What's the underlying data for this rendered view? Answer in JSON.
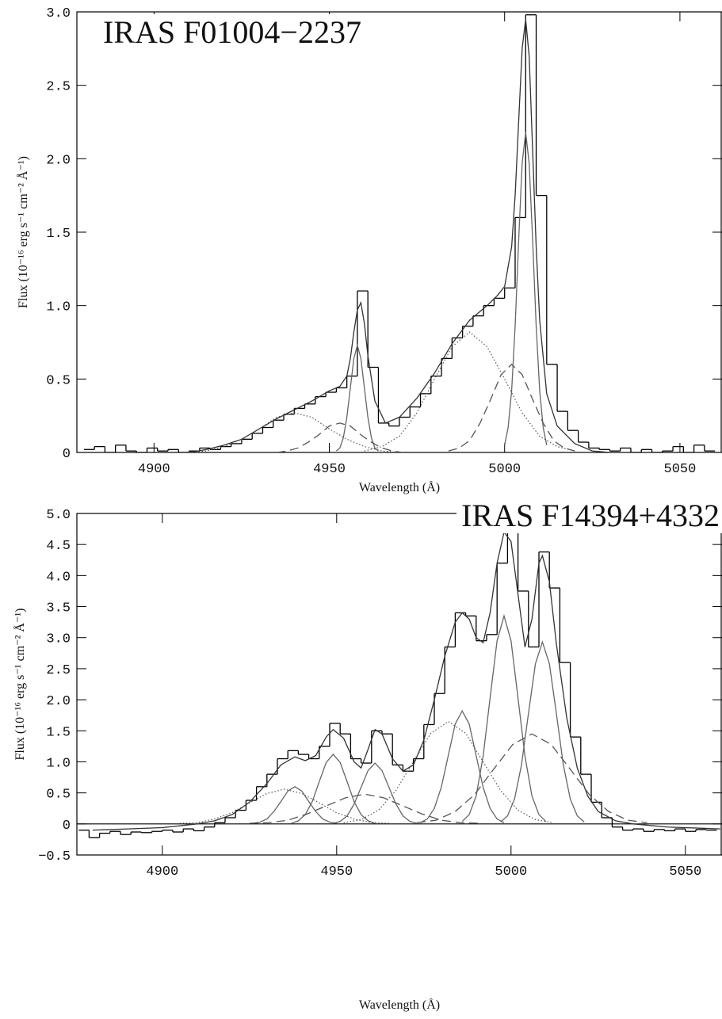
{
  "chart_data": [
    {
      "type": "line",
      "title": "IRAS F01004−2237",
      "xlabel": "Wavelength (Å)",
      "ylabel": "Flux (10⁻¹⁶ erg s⁻¹ cm⁻² Å⁻¹)",
      "xlim": [
        4878,
        5062
      ],
      "ylim": [
        0,
        3.0
      ],
      "xticks": [
        4900,
        4950,
        5000,
        5050
      ],
      "yticks": [
        0,
        0.5,
        {
          "value": 1,
          "label": "1.0"
        },
        1.5,
        {
          "value": 2,
          "label": "2.0"
        },
        2.5,
        {
          "value": 3,
          "label": "3.0"
        }
      ],
      "zero_line": false,
      "series": [
        {
          "style": "step",
          "color": "#000000",
          "x": [
            4880,
            4883,
            4886,
            4889,
            4892,
            4895,
            4898,
            4901,
            4904,
            4907,
            4910,
            4913,
            4916,
            4919,
            4922,
            4925,
            4928,
            4931,
            4934,
            4937,
            4940,
            4943,
            4946,
            4949,
            4952,
            4955,
            4958,
            4961,
            4964,
            4967,
            4970,
            4973,
            4976,
            4979,
            4982,
            4985,
            4988,
            4991,
            4994,
            4997,
            5000,
            5003,
            5006,
            5009,
            5012,
            5015,
            5018,
            5021,
            5024,
            5027,
            5030,
            5033,
            5036,
            5039,
            5042,
            5045,
            5048,
            5051,
            5054,
            5057
          ],
          "values": [
            0.02,
            0.04,
            0.0,
            0.05,
            0.01,
            0.0,
            0.03,
            0.01,
            0.02,
            0.0,
            0.01,
            0.03,
            0.02,
            0.04,
            0.06,
            0.09,
            0.13,
            0.17,
            0.22,
            0.26,
            0.3,
            0.33,
            0.38,
            0.41,
            0.44,
            0.52,
            1.1,
            0.58,
            0.2,
            0.18,
            0.24,
            0.31,
            0.4,
            0.52,
            0.64,
            0.78,
            0.86,
            0.93,
            1.0,
            1.05,
            1.12,
            1.6,
            2.98,
            1.75,
            0.6,
            0.28,
            0.15,
            0.07,
            0.03,
            0.02,
            0.01,
            0.03,
            0.0,
            0.02,
            0.0,
            0.01,
            0.04,
            0.0,
            0.05,
            0.01
          ]
        },
        {
          "style": "solid",
          "color": "#333333",
          "x": [
            4910,
            4915,
            4920,
            4925,
            4930,
            4935,
            4940,
            4945,
            4950,
            4953,
            4955,
            4956,
            4957,
            4958,
            4959,
            4960,
            4961,
            4963,
            4966,
            4970,
            4975,
            4980,
            4985,
            4990,
            4995,
            4998,
            5000,
            5002,
            5003,
            5004,
            5005,
            5006,
            5007,
            5008,
            5009,
            5010,
            5012,
            5015,
            5020,
            5025,
            5030
          ],
          "values": [
            0.0,
            0.02,
            0.05,
            0.09,
            0.16,
            0.23,
            0.29,
            0.35,
            0.42,
            0.45,
            0.52,
            0.64,
            0.82,
            0.97,
            1.02,
            0.88,
            0.66,
            0.35,
            0.2,
            0.24,
            0.37,
            0.54,
            0.74,
            0.9,
            1.0,
            1.07,
            1.13,
            1.4,
            1.75,
            2.25,
            2.75,
            2.95,
            2.7,
            2.05,
            1.4,
            0.9,
            0.4,
            0.18,
            0.06,
            0.01,
            0.0
          ]
        },
        {
          "style": "solid",
          "color": "#666666",
          "x": [
            5000,
            5001,
            5002,
            5003,
            5004,
            5005,
            5006,
            5007,
            5008,
            5009,
            5010,
            5011,
            5012
          ],
          "values": [
            0.05,
            0.17,
            0.42,
            0.86,
            1.44,
            1.97,
            2.18,
            1.97,
            1.44,
            0.86,
            0.42,
            0.17,
            0.05
          ]
        },
        {
          "style": "solid",
          "color": "#666666",
          "x": [
            4952,
            4953,
            4954,
            4955,
            4956,
            4957,
            4958,
            4959,
            4960,
            4961,
            4962,
            4963,
            4964
          ],
          "values": [
            0.01,
            0.03,
            0.1,
            0.24,
            0.44,
            0.64,
            0.73,
            0.64,
            0.44,
            0.24,
            0.1,
            0.03,
            0.01
          ]
        },
        {
          "style": "dotted",
          "color": "#555555",
          "x": [
            4960,
            4965,
            4970,
            4975,
            4980,
            4985,
            4990,
            4995,
            5000,
            5005,
            5010,
            5015,
            5020
          ],
          "values": [
            0.01,
            0.04,
            0.11,
            0.27,
            0.5,
            0.72,
            0.82,
            0.72,
            0.5,
            0.27,
            0.11,
            0.04,
            0.01
          ]
        },
        {
          "style": "dotted",
          "color": "#555555",
          "x": [
            4910,
            4915,
            4920,
            4925,
            4930,
            4935,
            4940,
            4945,
            4950,
            4955,
            4960,
            4965,
            4970
          ],
          "values": [
            0.0,
            0.01,
            0.04,
            0.09,
            0.16,
            0.24,
            0.27,
            0.24,
            0.16,
            0.09,
            0.04,
            0.01,
            0.0
          ]
        },
        {
          "style": "dashed",
          "color": "#555555",
          "x": [
            4984,
            4987,
            4990,
            4993,
            4996,
            4999,
            5002,
            5005,
            5008,
            5011,
            5014,
            5017,
            5020
          ],
          "values": [
            0.01,
            0.03,
            0.08,
            0.2,
            0.36,
            0.53,
            0.6,
            0.53,
            0.36,
            0.2,
            0.08,
            0.03,
            0.01
          ]
        },
        {
          "style": "dashed",
          "color": "#555555",
          "x": [
            4935,
            4938,
            4941,
            4944,
            4947,
            4950,
            4953,
            4956,
            4959,
            4962,
            4965,
            4968,
            4971
          ],
          "values": [
            0.0,
            0.01,
            0.03,
            0.07,
            0.12,
            0.18,
            0.2,
            0.18,
            0.12,
            0.07,
            0.03,
            0.01,
            0.0
          ]
        }
      ]
    },
    {
      "type": "line",
      "title": "IRAS F14394+4332",
      "xlabel": "Wavelength (Å)",
      "ylabel": "Flux (10⁻¹⁶ erg s⁻¹ cm⁻² Å⁻¹)",
      "xlim": [
        4875.5,
        5060.5
      ],
      "ylim": [
        -0.5,
        5.0
      ],
      "xticks": [
        4900,
        4950,
        5000,
        5050
      ],
      "yticks": [
        {
          "value": -0.5,
          "label": "−0.5"
        },
        0,
        0.5,
        {
          "value": 1,
          "label": "1.0"
        },
        1.5,
        {
          "value": 2,
          "label": "2.0"
        },
        2.5,
        {
          "value": 3,
          "label": "3.0"
        },
        3.5,
        {
          "value": 4,
          "label": "4.0"
        },
        4.5,
        {
          "value": 5,
          "label": "5.0"
        }
      ],
      "zero_line": true,
      "series": [
        {
          "style": "step",
          "color": "#000000",
          "x": [
            4876,
            4879,
            4882,
            4885,
            4888,
            4891,
            4894,
            4897,
            4900,
            4903,
            4906,
            4909,
            4912,
            4915,
            4918,
            4921,
            4924,
            4927,
            4930,
            4933,
            4936,
            4939,
            4942,
            4945,
            4948,
            4951,
            4954,
            4957,
            4960,
            4963,
            4966,
            4969,
            4972,
            4975,
            4978,
            4981,
            4984,
            4987,
            4990,
            4993,
            4996,
            4999,
            5002,
            5005,
            5008,
            5011,
            5014,
            5017,
            5020,
            5023,
            5026,
            5029,
            5032,
            5035,
            5038,
            5041,
            5044,
            5047,
            5050,
            5053,
            5056
          ],
          "values": [
            -0.1,
            -0.22,
            -0.15,
            -0.12,
            -0.17,
            -0.13,
            -0.14,
            -0.12,
            -0.1,
            -0.13,
            -0.08,
            -0.11,
            -0.05,
            0.02,
            0.1,
            0.22,
            0.38,
            0.6,
            0.8,
            1.05,
            1.18,
            1.12,
            1.05,
            1.25,
            1.62,
            1.45,
            1.05,
            0.98,
            1.5,
            1.45,
            0.95,
            0.85,
            1.05,
            1.6,
            2.1,
            2.85,
            3.4,
            3.35,
            2.95,
            3.05,
            4.2,
            4.72,
            3.75,
            2.85,
            4.38,
            3.8,
            2.6,
            1.4,
            0.8,
            0.35,
            0.1,
            -0.05,
            -0.1,
            -0.08,
            -0.12,
            -0.09,
            -0.11,
            -0.08,
            -0.12,
            -0.09,
            -0.1
          ]
        },
        {
          "style": "solid",
          "color": "#333333",
          "x": [
            4880,
            4890,
            4900,
            4910,
            4915,
            4920,
            4925,
            4930,
            4934,
            4938,
            4941,
            4944,
            4947,
            4949,
            4952,
            4955,
            4957,
            4959,
            4961,
            4963,
            4966,
            4969,
            4972,
            4975,
            4978,
            4981,
            4984,
            4986,
            4988,
            4990,
            4992,
            4994,
            4996,
            4998,
            5000,
            5002,
            5004,
            5006,
            5008,
            5009,
            5011,
            5013,
            5016,
            5019,
            5022,
            5025,
            5030,
            5035,
            5045,
            5060
          ],
          "values": [
            -0.1,
            -0.08,
            -0.06,
            0.0,
            0.05,
            0.15,
            0.35,
            0.65,
            0.95,
            1.08,
            1.02,
            1.1,
            1.4,
            1.52,
            1.38,
            1.0,
            0.9,
            1.2,
            1.52,
            1.45,
            1.05,
            0.85,
            0.95,
            1.35,
            2.0,
            2.7,
            3.25,
            3.4,
            3.3,
            3.0,
            2.92,
            3.4,
            4.2,
            4.7,
            4.55,
            3.7,
            2.85,
            3.3,
            4.2,
            4.32,
            3.9,
            2.9,
            1.7,
            0.9,
            0.45,
            0.2,
            0.05,
            0.0,
            -0.05,
            -0.08
          ]
        },
        {
          "style": "solid",
          "color": "#666666",
          "x": [
            4926,
            4928,
            4930,
            4932,
            4934,
            4936,
            4938,
            4940,
            4942,
            4944,
            4946,
            4948,
            4950
          ],
          "values": [
            0.01,
            0.03,
            0.08,
            0.2,
            0.36,
            0.53,
            0.6,
            0.53,
            0.36,
            0.2,
            0.08,
            0.03,
            0.01
          ]
        },
        {
          "style": "solid",
          "color": "#666666",
          "x": [
            4937,
            4939,
            4941,
            4943,
            4945,
            4947,
            4949,
            4951,
            4953,
            4955,
            4957,
            4959,
            4961
          ],
          "values": [
            0.01,
            0.05,
            0.15,
            0.36,
            0.68,
            0.99,
            1.12,
            0.99,
            0.68,
            0.36,
            0.15,
            0.05,
            0.01
          ]
        },
        {
          "style": "solid",
          "color": "#666666",
          "x": [
            4949,
            4951,
            4953,
            4955,
            4957,
            4959,
            4961,
            4963,
            4965,
            4967,
            4969,
            4971,
            4973
          ],
          "values": [
            0.01,
            0.04,
            0.13,
            0.32,
            0.59,
            0.86,
            0.98,
            0.86,
            0.59,
            0.32,
            0.13,
            0.04,
            0.01
          ]
        },
        {
          "style": "solid",
          "color": "#666666",
          "x": [
            4974,
            4976,
            4978,
            4980,
            4982,
            4984,
            4986,
            4988,
            4990,
            4992,
            4994,
            4996,
            4998
          ],
          "values": [
            0.02,
            0.08,
            0.25,
            0.59,
            1.1,
            1.61,
            1.82,
            1.61,
            1.1,
            0.59,
            0.25,
            0.08,
            0.02
          ]
        },
        {
          "style": "solid",
          "color": "#666666",
          "x": [
            4986,
            4988,
            4990,
            4992,
            4994,
            4996,
            4998,
            5000,
            5002,
            5004,
            5006,
            5008,
            5010
          ],
          "values": [
            0.04,
            0.15,
            0.45,
            1.09,
            2.03,
            2.95,
            3.35,
            2.95,
            2.03,
            1.09,
            0.45,
            0.15,
            0.04
          ]
        },
        {
          "style": "solid",
          "color": "#666666",
          "x": [
            4997,
            4999,
            5001,
            5003,
            5005,
            5007,
            5009,
            5011,
            5013,
            5015,
            5017,
            5019,
            5021
          ],
          "values": [
            0.03,
            0.13,
            0.4,
            0.95,
            1.78,
            2.58,
            2.93,
            2.58,
            1.78,
            0.95,
            0.4,
            0.13,
            0.03
          ]
        },
        {
          "style": "dotted",
          "color": "#555555",
          "x": [
            4905,
            4910,
            4915,
            4920,
            4925,
            4930,
            4935,
            4940,
            4945,
            4950,
            4955,
            4960,
            4965
          ],
          "values": [
            0.01,
            0.02,
            0.08,
            0.18,
            0.34,
            0.49,
            0.56,
            0.49,
            0.34,
            0.18,
            0.08,
            0.02,
            0.01
          ]
        },
        {
          "style": "dotted",
          "color": "#555555",
          "x": [
            4952,
            4957,
            4962,
            4967,
            4972,
            4977,
            4982,
            4987,
            4992,
            4997,
            5002,
            5007,
            5012
          ],
          "values": [
            0.02,
            0.07,
            0.22,
            0.54,
            1.0,
            1.46,
            1.65,
            1.46,
            1.0,
            0.54,
            0.22,
            0.07,
            0.02
          ]
        },
        {
          "style": "dashed",
          "color": "#555555",
          "x": [
            4925,
            4930.5,
            4936,
            4941.5,
            4947,
            4952.5,
            4958,
            4963.5,
            4969,
            4974.5,
            4980,
            4985.5,
            4991
          ],
          "values": [
            0.01,
            0.02,
            0.06,
            0.16,
            0.29,
            0.42,
            0.48,
            0.42,
            0.29,
            0.16,
            0.06,
            0.02,
            0.01
          ]
        },
        {
          "style": "dashed",
          "color": "#555555",
          "x": [
            4973,
            4978.5,
            4984,
            4989.5,
            4995,
            5000.5,
            5006,
            5011.5,
            5017,
            5022.5,
            5028,
            5033.5,
            5039
          ],
          "values": [
            0.02,
            0.06,
            0.2,
            0.47,
            0.88,
            1.28,
            1.45,
            1.28,
            0.88,
            0.47,
            0.2,
            0.06,
            0.02
          ]
        }
      ]
    }
  ]
}
